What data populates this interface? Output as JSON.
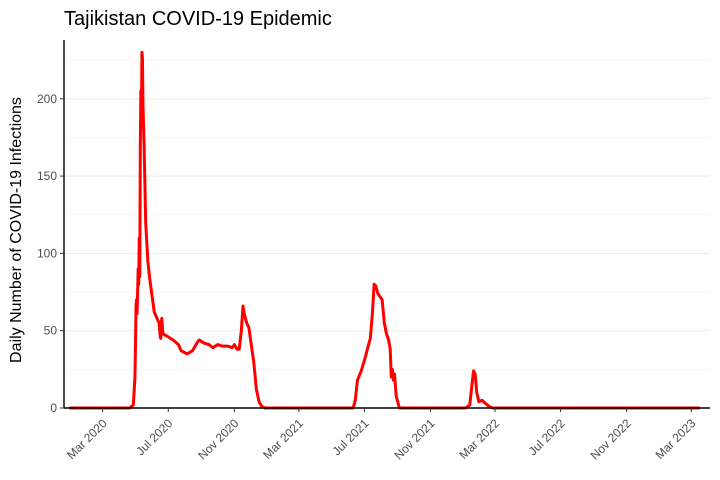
{
  "chart_data": {
    "type": "line",
    "title": "Tajikistan COVID-19 Epidemic",
    "xlabel": "",
    "ylabel": "Daily Number of COVID-19 Infections",
    "ylim": [
      0,
      238
    ],
    "xlim": [
      "2019-12-20",
      "2023-04-05"
    ],
    "y_ticks": [
      0,
      50,
      100,
      150,
      200
    ],
    "y_minor_ticks": [
      25,
      75,
      125,
      175,
      225
    ],
    "x_ticks": [
      {
        "date": "2020-03-01",
        "label": "Mar 2020"
      },
      {
        "date": "2020-07-01",
        "label": "Jul 2020"
      },
      {
        "date": "2020-11-01",
        "label": "Nov 2020"
      },
      {
        "date": "2021-03-01",
        "label": "Mar 2021"
      },
      {
        "date": "2021-07-01",
        "label": "Jul 2021"
      },
      {
        "date": "2021-11-01",
        "label": "Nov 2021"
      },
      {
        "date": "2022-03-01",
        "label": "Mar 2022"
      },
      {
        "date": "2022-07-01",
        "label": "Jul 2022"
      },
      {
        "date": "2022-11-01",
        "label": "Nov 2022"
      },
      {
        "date": "2023-03-01",
        "label": "Mar 2023"
      }
    ],
    "grid": true,
    "legend": "none",
    "series": [
      {
        "color": "#ff0000",
        "points": [
          [
            "2020-01-01",
            0
          ],
          [
            "2020-04-20",
            0
          ],
          [
            "2020-04-27",
            2
          ],
          [
            "2020-04-30",
            20
          ],
          [
            "2020-05-01",
            40
          ],
          [
            "2020-05-02",
            66
          ],
          [
            "2020-05-03",
            70
          ],
          [
            "2020-05-04",
            61
          ],
          [
            "2020-05-06",
            90
          ],
          [
            "2020-05-07",
            80
          ],
          [
            "2020-05-08",
            110
          ],
          [
            "2020-05-09",
            85
          ],
          [
            "2020-05-10",
            170
          ],
          [
            "2020-05-11",
            205
          ],
          [
            "2020-05-12",
            183
          ],
          [
            "2020-05-13",
            230
          ],
          [
            "2020-05-14",
            226
          ],
          [
            "2020-05-15",
            195
          ],
          [
            "2020-05-17",
            170
          ],
          [
            "2020-05-20",
            120
          ],
          [
            "2020-05-24",
            95
          ],
          [
            "2020-05-27",
            85
          ],
          [
            "2020-06-01",
            72
          ],
          [
            "2020-06-05",
            62
          ],
          [
            "2020-06-10",
            58
          ],
          [
            "2020-06-14",
            55
          ],
          [
            "2020-06-16",
            46
          ],
          [
            "2020-06-17",
            45
          ],
          [
            "2020-06-18",
            55
          ],
          [
            "2020-06-19",
            58
          ],
          [
            "2020-06-21",
            48
          ],
          [
            "2020-07-01",
            46
          ],
          [
            "2020-07-10",
            44
          ],
          [
            "2020-07-20",
            41
          ],
          [
            "2020-07-25",
            37
          ],
          [
            "2020-08-05",
            35
          ],
          [
            "2020-08-15",
            37
          ],
          [
            "2020-08-25",
            43
          ],
          [
            "2020-08-28",
            44
          ],
          [
            "2020-09-05",
            42
          ],
          [
            "2020-09-15",
            41
          ],
          [
            "2020-09-22",
            39
          ],
          [
            "2020-10-01",
            41
          ],
          [
            "2020-10-10",
            40
          ],
          [
            "2020-10-20",
            40
          ],
          [
            "2020-10-28",
            39
          ],
          [
            "2020-11-01",
            41
          ],
          [
            "2020-11-06",
            38
          ],
          [
            "2020-11-10",
            38
          ],
          [
            "2020-11-14",
            50
          ],
          [
            "2020-11-17",
            66
          ],
          [
            "2020-11-20",
            60
          ],
          [
            "2020-11-24",
            55
          ],
          [
            "2020-11-28",
            52
          ],
          [
            "2020-12-02",
            42
          ],
          [
            "2020-12-07",
            30
          ],
          [
            "2020-12-12",
            12
          ],
          [
            "2020-12-17",
            4
          ],
          [
            "2020-12-22",
            1
          ],
          [
            "2020-12-28",
            0
          ],
          [
            "2021-06-10",
            0
          ],
          [
            "2021-06-14",
            5
          ],
          [
            "2021-06-18",
            18
          ],
          [
            "2021-06-25",
            24
          ],
          [
            "2021-07-02",
            32
          ],
          [
            "2021-07-08",
            40
          ],
          [
            "2021-07-12",
            45
          ],
          [
            "2021-07-16",
            62
          ],
          [
            "2021-07-19",
            80
          ],
          [
            "2021-07-22",
            79
          ],
          [
            "2021-07-26",
            74
          ],
          [
            "2021-07-30",
            72
          ],
          [
            "2021-08-03",
            70
          ],
          [
            "2021-08-07",
            55
          ],
          [
            "2021-08-11",
            48
          ],
          [
            "2021-08-15",
            44
          ],
          [
            "2021-08-18",
            38
          ],
          [
            "2021-08-20",
            20
          ],
          [
            "2021-08-22",
            25
          ],
          [
            "2021-08-24",
            18
          ],
          [
            "2021-08-26",
            22
          ],
          [
            "2021-08-29",
            8
          ],
          [
            "2021-09-01",
            4
          ],
          [
            "2021-09-04",
            0
          ],
          [
            "2021-09-20",
            0
          ],
          [
            "2021-10-01",
            0
          ],
          [
            "2021-10-20",
            0
          ],
          [
            "2021-11-01",
            0
          ],
          [
            "2021-12-01",
            0
          ],
          [
            "2022-01-05",
            0
          ],
          [
            "2022-01-13",
            2
          ],
          [
            "2022-01-17",
            15
          ],
          [
            "2022-01-20",
            24
          ],
          [
            "2022-01-23",
            22
          ],
          [
            "2022-01-26",
            10
          ],
          [
            "2022-01-30",
            4
          ],
          [
            "2022-02-05",
            5
          ],
          [
            "2022-02-11",
            3
          ],
          [
            "2022-02-18",
            1
          ],
          [
            "2022-02-25",
            0
          ],
          [
            "2023-03-15",
            0
          ]
        ]
      }
    ]
  }
}
